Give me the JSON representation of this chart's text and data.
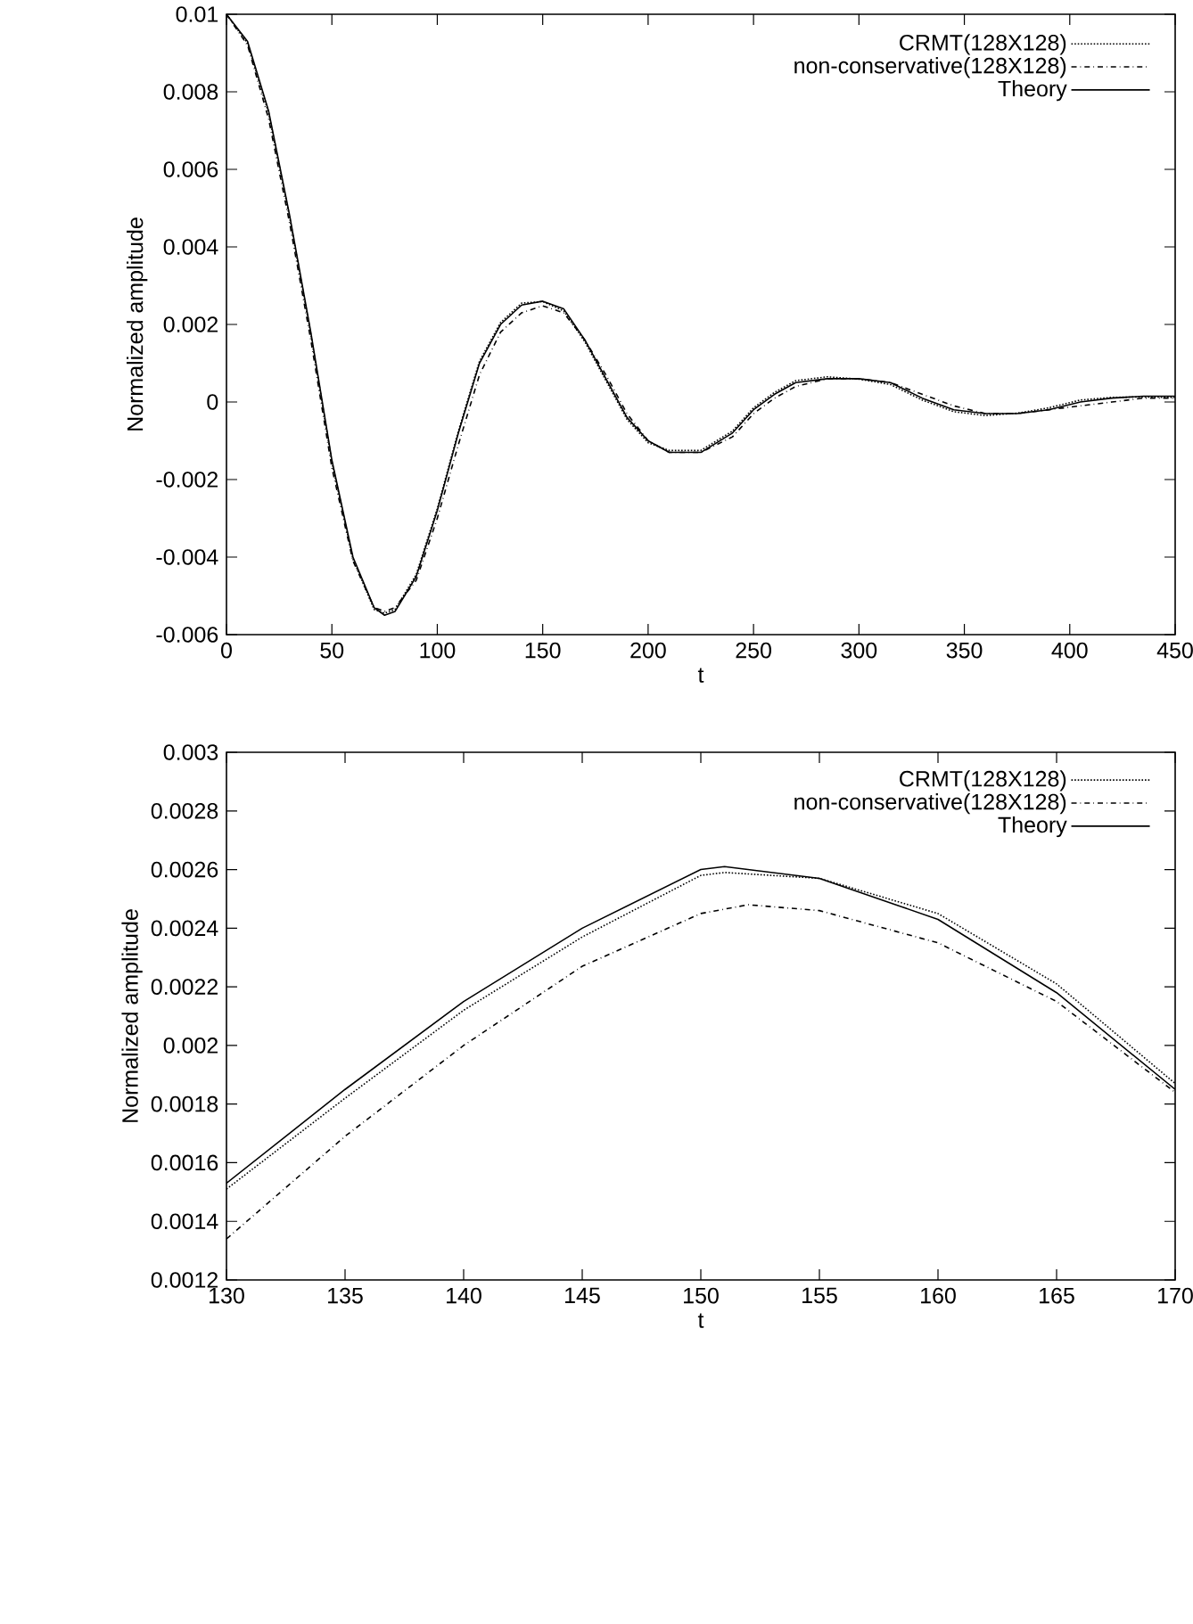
{
  "chart_data": [
    {
      "type": "line",
      "xlabel": "t",
      "ylabel": "Normalized amplitude",
      "legend": "top right",
      "grid": false,
      "xlim": [
        0,
        450
      ],
      "xticks": [
        0,
        50,
        100,
        150,
        200,
        250,
        300,
        350,
        400,
        450
      ],
      "ylim": [
        -0.006,
        0.01
      ],
      "yticks": [
        -0.006,
        -0.004,
        -0.002,
        0,
        0.002,
        0.004,
        0.006,
        0.008,
        0.01
      ],
      "series": [
        {
          "name": "CRMT(128X128)",
          "color": "#000000",
          "line_style": "dotted",
          "x": [
            0,
            10,
            20,
            30,
            40,
            50,
            60,
            70,
            75,
            80,
            90,
            100,
            110,
            120,
            130,
            140,
            150,
            160,
            170,
            180,
            190,
            200,
            210,
            225,
            240,
            250,
            260,
            270,
            285,
            300,
            315,
            330,
            345,
            360,
            375,
            390,
            405,
            420,
            435,
            450
          ],
          "values": [
            0.01,
            0.00925,
            0.00745,
            0.00475,
            0.00175,
            -0.00155,
            -0.00405,
            -0.00535,
            -0.00545,
            -0.00535,
            -0.00445,
            -0.00275,
            -0.00075,
            0.00105,
            0.00205,
            0.00255,
            0.00259,
            0.00235,
            0.00155,
            0.00055,
            -0.00045,
            -0.00105,
            -0.00125,
            -0.00125,
            -0.00075,
            -0.00015,
            0.00025,
            0.00055,
            0.00065,
            0.00059,
            0.00045,
            5e-05,
            -0.00025,
            -0.00035,
            -0.00029,
            -0.00015,
            5e-05,
            0.00012,
            0.00013,
            0.00012
          ]
        },
        {
          "name": "non-conservative(128X128)",
          "color": "#000000",
          "line_style": "dashdot",
          "x": [
            0,
            10,
            20,
            30,
            40,
            50,
            60,
            70,
            75,
            80,
            90,
            100,
            110,
            120,
            130,
            140,
            150,
            160,
            170,
            180,
            190,
            200,
            210,
            225,
            240,
            250,
            260,
            270,
            285,
            300,
            315,
            330,
            345,
            360,
            375,
            390,
            405,
            420,
            435,
            450
          ],
          "values": [
            0.01,
            0.0092,
            0.0073,
            0.0046,
            0.0016,
            -0.0017,
            -0.0041,
            -0.0053,
            -0.0054,
            -0.0053,
            -0.0046,
            -0.003,
            -0.0011,
            0.0007,
            0.0018,
            0.0023,
            0.00248,
            0.0023,
            0.0016,
            0.0007,
            -0.0003,
            -0.001,
            -0.0013,
            -0.0013,
            -0.0009,
            -0.0003,
            0.0001,
            0.0004,
            0.0006,
            0.0006,
            0.0005,
            0.0002,
            -0.0001,
            -0.0003,
            -0.0003,
            -0.0002,
            -0.0001,
            0.0,
            0.0001,
            0.0001
          ]
        },
        {
          "name": "Theory",
          "color": "#000000",
          "line_style": "solid",
          "x": [
            0,
            10,
            20,
            30,
            40,
            50,
            60,
            70,
            75,
            80,
            90,
            100,
            110,
            120,
            130,
            140,
            150,
            160,
            170,
            180,
            190,
            200,
            210,
            225,
            240,
            250,
            260,
            270,
            285,
            300,
            315,
            330,
            345,
            360,
            375,
            390,
            405,
            420,
            435,
            450
          ],
          "values": [
            0.01,
            0.0093,
            0.0075,
            0.0048,
            0.0018,
            -0.0015,
            -0.004,
            -0.0053,
            -0.0055,
            -0.0054,
            -0.0045,
            -0.0028,
            -0.0008,
            0.001,
            0.002,
            0.0025,
            0.0026,
            0.0024,
            0.0016,
            0.0006,
            -0.0004,
            -0.001,
            -0.0013,
            -0.0013,
            -0.0008,
            -0.0002,
            0.0002,
            0.0005,
            0.0006,
            0.0006,
            0.0005,
            0.0001,
            -0.0002,
            -0.0003,
            -0.0003,
            -0.0002,
            0.0,
            0.0001,
            0.00015,
            0.00015
          ]
        }
      ]
    },
    {
      "type": "line",
      "xlabel": "t",
      "ylabel": "Normalized amplitude",
      "legend": "top right",
      "grid": false,
      "xlim": [
        130,
        170
      ],
      "xticks": [
        130,
        135,
        140,
        145,
        150,
        155,
        160,
        165,
        170
      ],
      "ylim": [
        0.0012,
        0.003
      ],
      "yticks": [
        0.0012,
        0.0014,
        0.0016,
        0.0018,
        0.002,
        0.0022,
        0.0024,
        0.0026,
        0.0028,
        0.003
      ],
      "series": [
        {
          "name": "CRMT(128X128)",
          "color": "#000000",
          "line_style": "dotted",
          "x": [
            130,
            135,
            140,
            145,
            150,
            151,
            155,
            160,
            165,
            170
          ],
          "values": [
            0.00151,
            0.00182,
            0.00212,
            0.00237,
            0.00258,
            0.00259,
            0.00257,
            0.00245,
            0.00221,
            0.00187
          ]
        },
        {
          "name": "non-conservative(128X128)",
          "color": "#000000",
          "line_style": "dashdot",
          "x": [
            130,
            135,
            140,
            145,
            150,
            152,
            155,
            160,
            165,
            170
          ],
          "values": [
            0.00134,
            0.00169,
            0.002,
            0.00227,
            0.00245,
            0.00248,
            0.00246,
            0.00235,
            0.00215,
            0.00184
          ]
        },
        {
          "name": "Theory",
          "color": "#000000",
          "line_style": "solid",
          "x": [
            130,
            135,
            140,
            145,
            150,
            151,
            155,
            160,
            165,
            170
          ],
          "values": [
            0.00153,
            0.00185,
            0.00215,
            0.0024,
            0.0026,
            0.00261,
            0.00257,
            0.00243,
            0.00218,
            0.00185
          ]
        }
      ]
    }
  ]
}
